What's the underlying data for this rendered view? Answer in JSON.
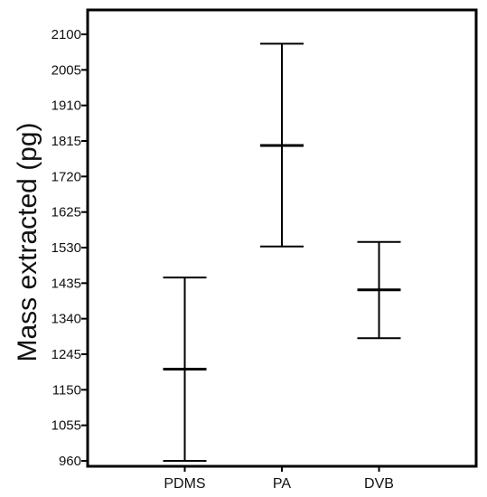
{
  "chart_data": {
    "type": "errorbar",
    "title": "",
    "xlabel": "",
    "ylabel": "Mass extracted (pg)",
    "ylim": [
      960,
      2180
    ],
    "yticks": [
      960,
      1055,
      1150,
      1245,
      1340,
      1435,
      1530,
      1625,
      1720,
      1815,
      1910,
      2005,
      2100
    ],
    "categories": [
      "PDMS",
      "PA",
      "DVB"
    ],
    "series": [
      {
        "mean": [
          1205,
          1803,
          1417
        ],
        "lower": [
          960,
          1533,
          1288
        ],
        "upper": [
          1450,
          2075,
          1545
        ]
      }
    ],
    "grid": false,
    "legend": "none"
  }
}
